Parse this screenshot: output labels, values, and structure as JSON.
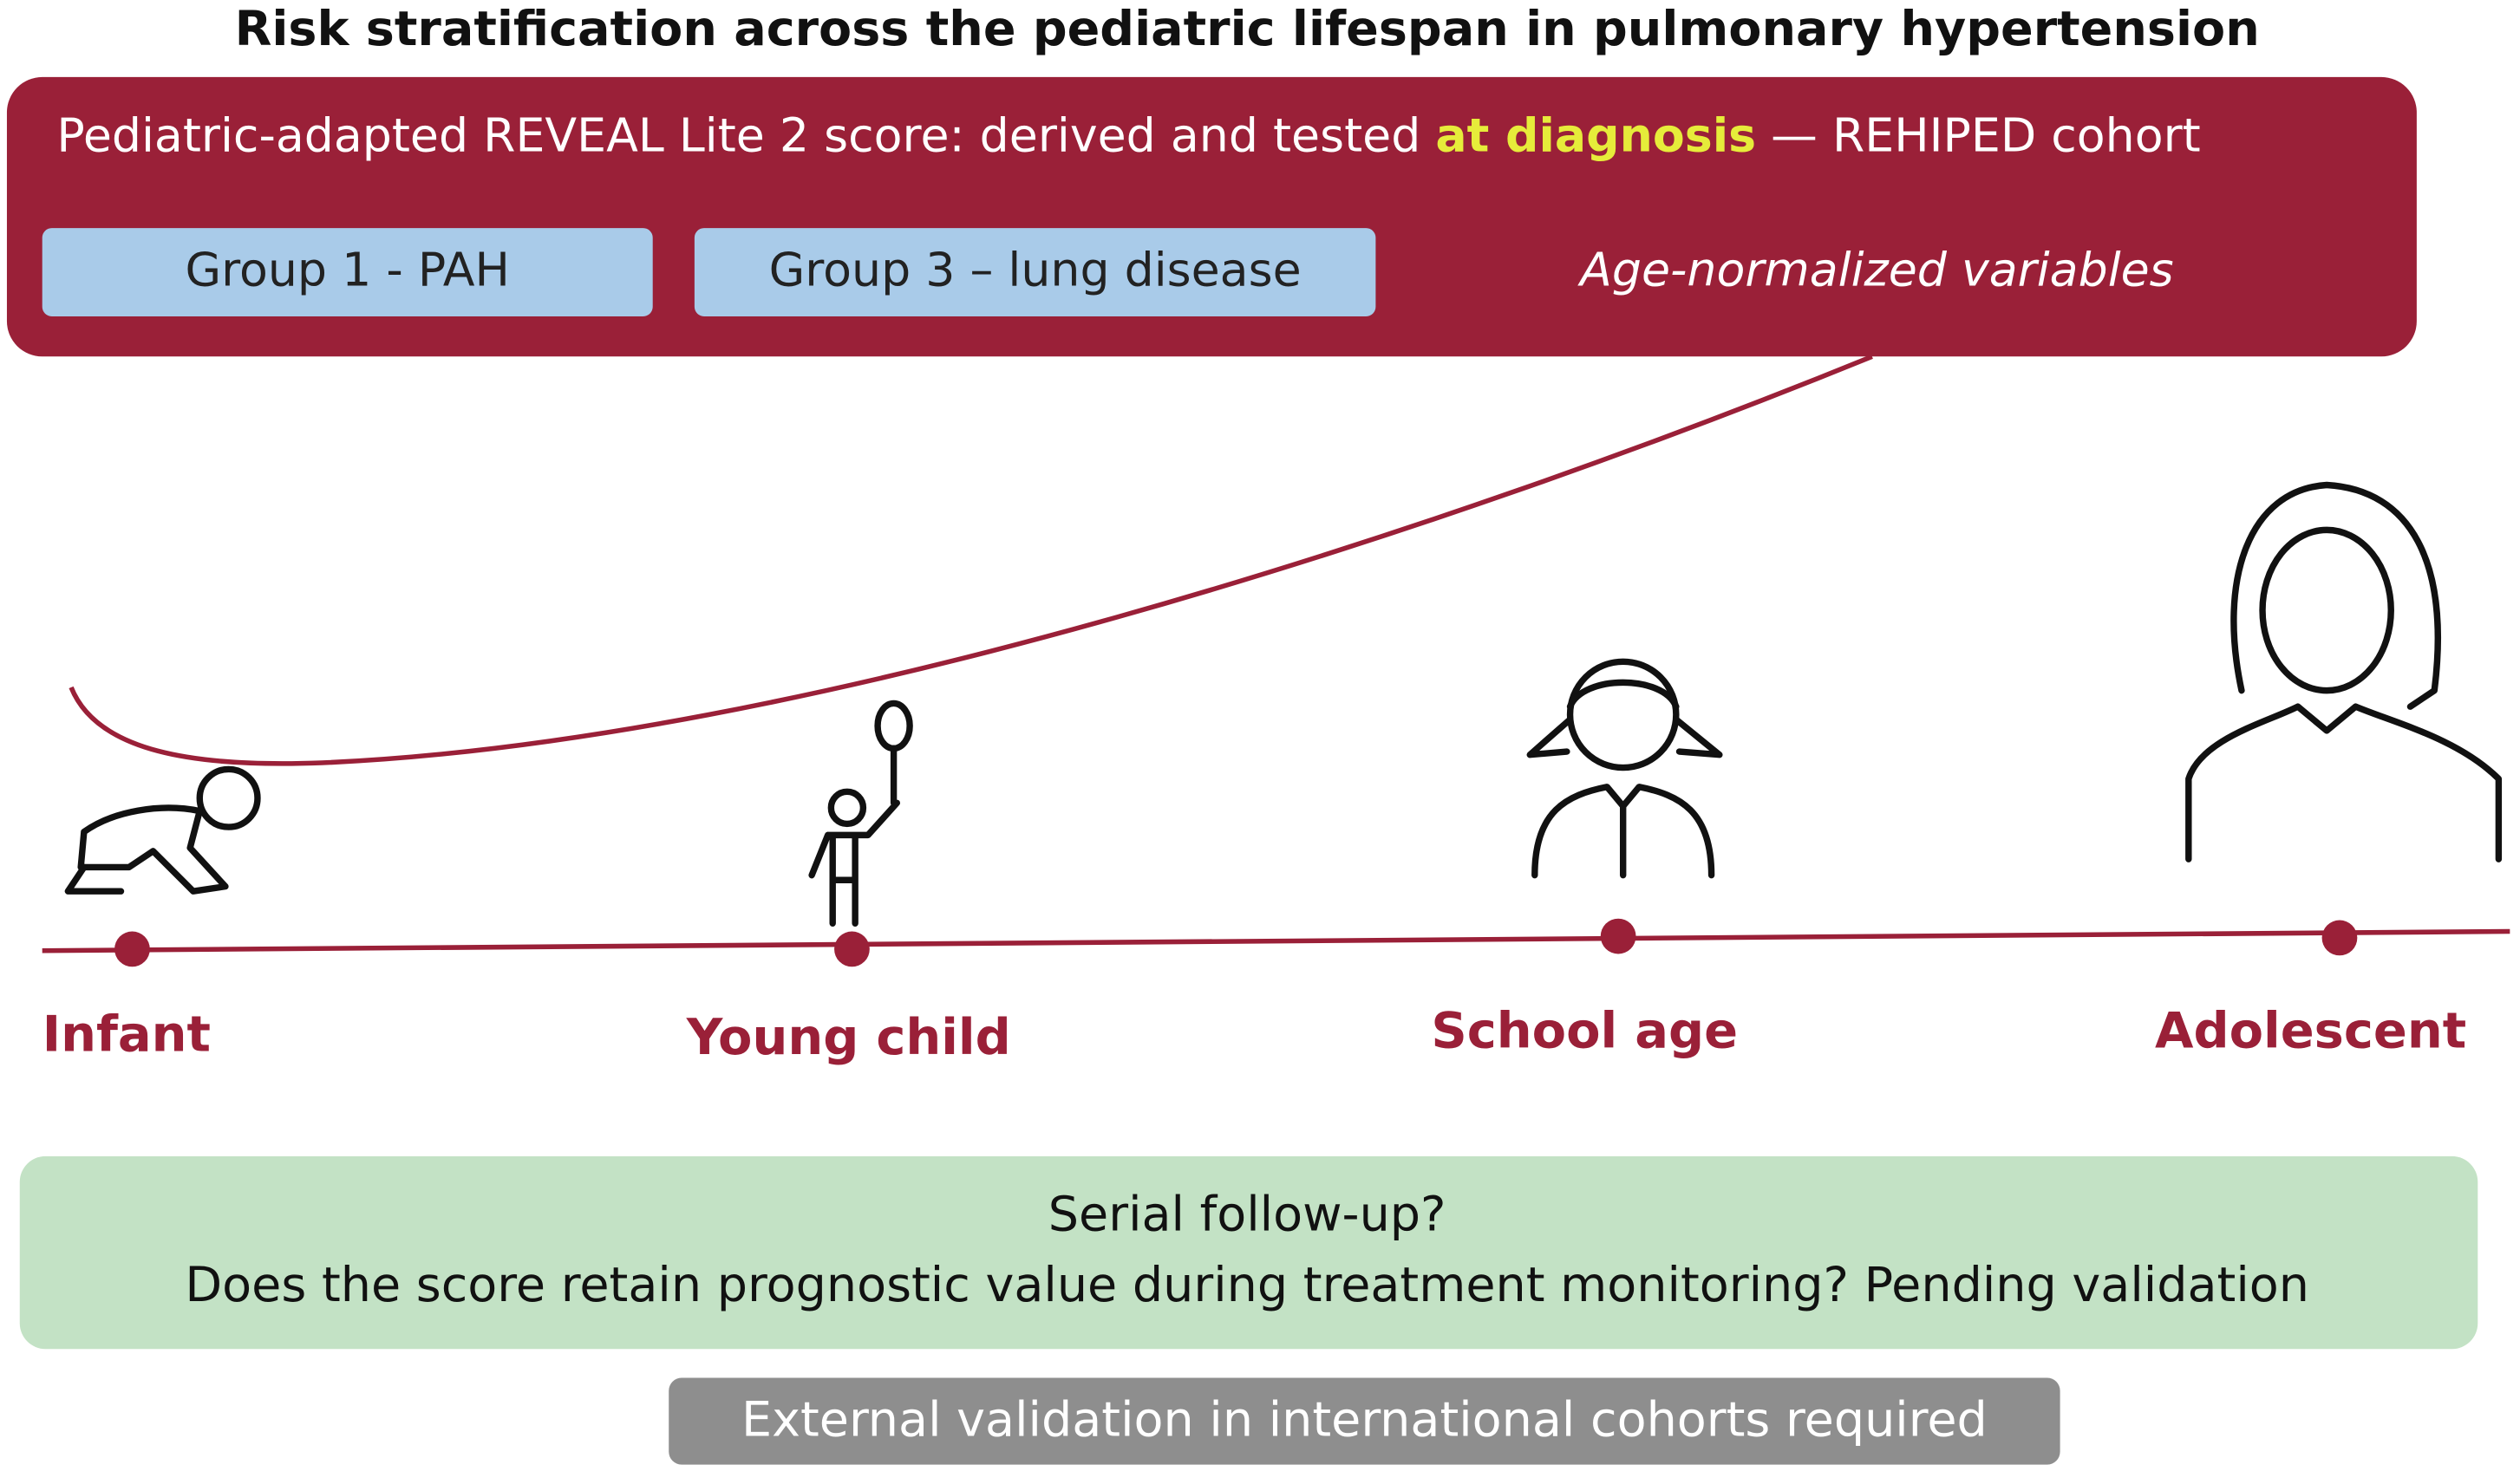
{
  "title": "Risk stratification across the pediatric lifespan in pulmonary hypertension",
  "header": {
    "text_before": "Pediatric-adapted REVEAL Lite 2 score: derived and tested ",
    "highlight": "at diagnosis",
    "text_after": " — REHIPED cohort",
    "tags": [
      "Group 1 - PAH",
      "Group 3 – lung disease"
    ],
    "note": "Age-normalized variables"
  },
  "timeline": {
    "stages": [
      "Infant",
      "Young child",
      "School age",
      "Adolescent"
    ]
  },
  "followup": {
    "question": "Serial follow-up?",
    "text": "Does the score retain prognostic value during treatment monitoring? Pending validation"
  },
  "footer": "External validation in international cohorts required"
}
